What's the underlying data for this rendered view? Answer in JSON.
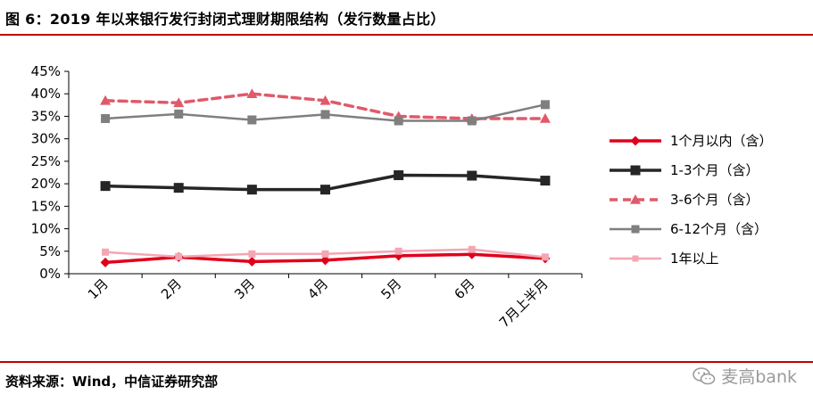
{
  "header": {
    "title": "图 6：2019 年以来银行发行封闭式理财期限结构（发行数量占比）"
  },
  "footer": {
    "source": "资料来源：Wind，中信证券研究部",
    "watermark": "麦高bank"
  },
  "chart_data": {
    "type": "line",
    "title": "图 6：2019 年以来银行发行封闭式理财期限结构（发行数量占比）",
    "categories": [
      "1月",
      "2月",
      "3月",
      "4月",
      "5月",
      "6月",
      "7月上半月"
    ],
    "ylim": [
      0,
      45
    ],
    "yticks": [
      "0%",
      "5%",
      "10%",
      "15%",
      "20%",
      "25%",
      "30%",
      "35%",
      "40%",
      "45%"
    ],
    "ytick_values": [
      0,
      5,
      10,
      15,
      20,
      25,
      30,
      35,
      40,
      45
    ],
    "grid": false,
    "legend_position": "right",
    "series": [
      {
        "name": "1个月以内（含）",
        "values": [
          2.5,
          3.7,
          2.7,
          3.0,
          4.0,
          4.3,
          3.4
        ],
        "color": "#e0001b",
        "marker": "diamond",
        "dash": "solid"
      },
      {
        "name": "1-3个月（含）",
        "values": [
          19.5,
          19.1,
          18.7,
          18.7,
          21.9,
          21.8,
          20.7
        ],
        "color": "#262626",
        "marker": "square",
        "dash": "solid"
      },
      {
        "name": "3-6个月（含）",
        "values": [
          38.5,
          38.0,
          40.0,
          38.5,
          35.0,
          34.5,
          34.5
        ],
        "color": "#e05a6a",
        "marker": "triangle",
        "dash": "dashed"
      },
      {
        "name": "6-12个月（含）",
        "values": [
          34.5,
          35.5,
          34.2,
          35.4,
          34.0,
          34.0,
          37.6
        ],
        "color": "#7f7f7f",
        "marker": "square",
        "dash": "solid"
      },
      {
        "name": "1年以上",
        "values": [
          4.8,
          3.8,
          4.4,
          4.4,
          5.0,
          5.4,
          3.7
        ],
        "color": "#f4a6b4",
        "marker": "square",
        "dash": "solid"
      }
    ]
  }
}
